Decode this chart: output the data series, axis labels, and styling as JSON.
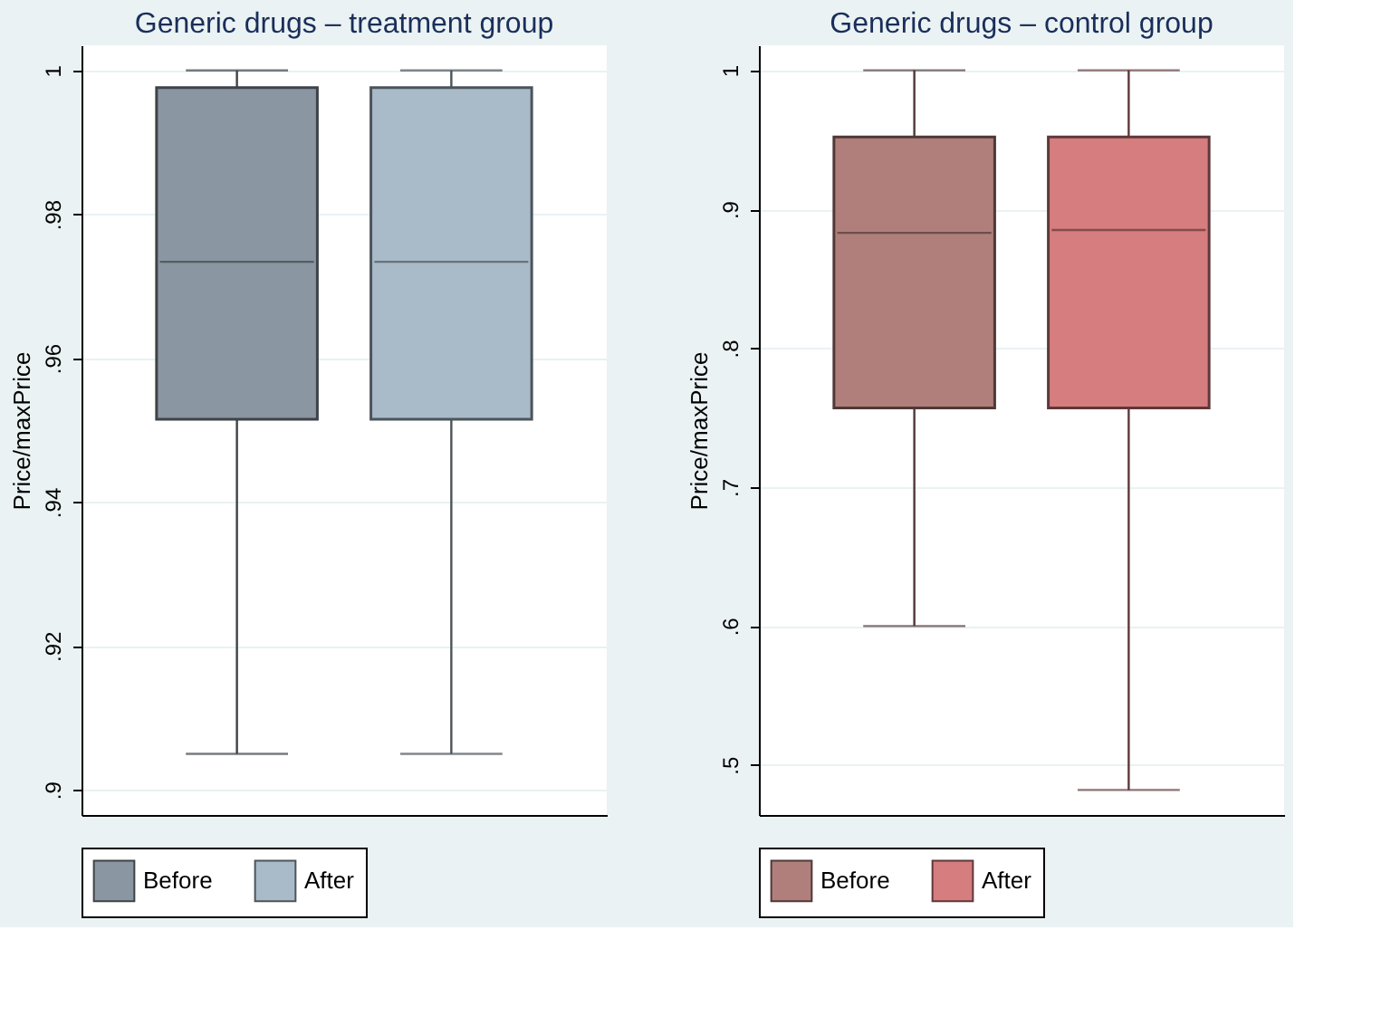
{
  "chart_data": [
    {
      "type": "box",
      "title": "Generic drugs – treatment group",
      "ylabel": "Price/maxPrice",
      "categories": [
        null
      ],
      "ylim": [
        0.8965,
        1.0035
      ],
      "yticks": [
        {
          "value": 0.9,
          "label": ".9"
        },
        {
          "value": 0.92,
          "label": ".92"
        },
        {
          "value": 0.94,
          "label": ".94"
        },
        {
          "value": 0.96,
          "label": ".96"
        },
        {
          "value": 0.98,
          "label": ".98"
        },
        1
      ],
      "grid": "y",
      "legend": "bottom",
      "tick_labels": "y",
      "series": [
        {
          "name": "Before",
          "color": "#8a96a2",
          "boxes": [
            {
              "low": 0.905,
              "q1": 0.9515,
              "median": 0.9734,
              "q3": 0.9976,
              "high": 1.0
            }
          ]
        },
        {
          "name": "After",
          "color": "#a9bbc9",
          "boxes": [
            {
              "low": 0.905,
              "q1": 0.9515,
              "median": 0.9734,
              "q3": 0.9976,
              "high": 1.0
            }
          ]
        }
      ]
    },
    {
      "type": "box",
      "title": "Generic drugs – control group",
      "ylabel": "Price/maxPrice",
      "categories": [
        null
      ],
      "ylim": [
        0.464,
        1.018
      ],
      "yticks": [
        {
          "value": 0.5,
          "label": ".5"
        },
        {
          "value": 0.6,
          "label": ".6"
        },
        {
          "value": 0.7,
          "label": ".7"
        },
        {
          "value": 0.8,
          "label": ".8"
        },
        {
          "value": 0.9,
          "label": ".9"
        },
        1
      ],
      "grid": "y",
      "legend": "bottom",
      "tick_labels": "y",
      "series": [
        {
          "name": "Before",
          "color": "#b07f7c",
          "boxes": [
            {
              "low": 0.6,
              "q1": 0.757,
              "median": 0.883,
              "q3": 0.952,
              "high": 1.0
            }
          ]
        },
        {
          "name": "After",
          "color": "#d57d7f",
          "boxes": [
            {
              "low": 0.482,
              "q1": 0.757,
              "median": 0.885,
              "q3": 0.952,
              "high": 1.0
            }
          ]
        }
      ]
    }
  ]
}
